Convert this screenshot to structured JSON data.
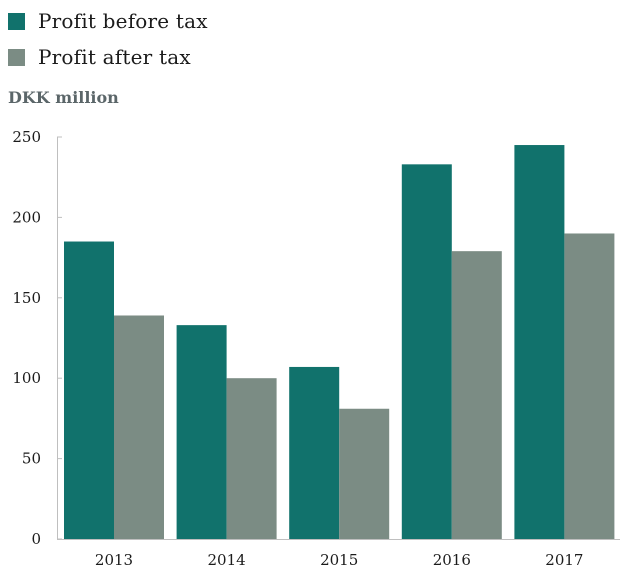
{
  "chart_data": {
    "type": "bar",
    "unit_label": "DKK million",
    "categories": [
      "2013",
      "2014",
      "2015",
      "2016",
      "2017"
    ],
    "series": [
      {
        "name": "Profit before tax",
        "color": "#11726c",
        "values": [
          185,
          133,
          107,
          233,
          245
        ]
      },
      {
        "name": "Profit after tax",
        "color": "#7b8c84",
        "values": [
          139,
          100,
          81,
          179,
          190
        ]
      }
    ],
    "ylim": [
      0,
      250
    ],
    "yticks": [
      0,
      50,
      100,
      150,
      200,
      250
    ],
    "grid": false,
    "legend_position": "top-left"
  }
}
